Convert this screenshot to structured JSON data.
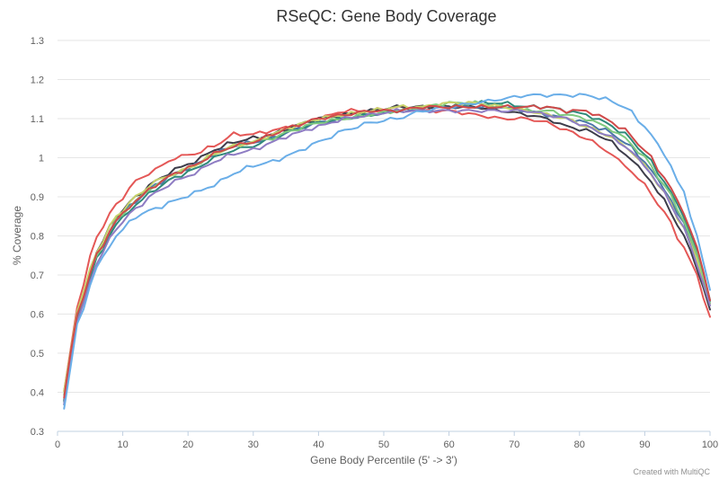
{
  "chart_data": {
    "type": "line",
    "title": "RSeQC: Gene Body Coverage",
    "xlabel": "Gene Body Percentile (5' -> 3')",
    "ylabel": "% Coverage",
    "credit": "Created with MultiQC",
    "xlim": [
      0,
      100
    ],
    "ylim": [
      0.3,
      1.3
    ],
    "xticks": [
      0,
      10,
      20,
      30,
      40,
      50,
      60,
      70,
      80,
      90,
      100
    ],
    "yticks": [
      0.3,
      0.4,
      0.5,
      0.6,
      0.7,
      0.8,
      0.9,
      1,
      1.1,
      1.2,
      1.3
    ],
    "grid": true,
    "series": [
      {
        "color": "#e45756",
        "anchors": [
          [
            1,
            0.4
          ],
          [
            3,
            0.62
          ],
          [
            6,
            0.8
          ],
          [
            9,
            0.88
          ],
          [
            12,
            0.94
          ],
          [
            15,
            0.97
          ],
          [
            18,
            1.0
          ],
          [
            21,
            1.01
          ],
          [
            24,
            1.03
          ],
          [
            27,
            1.06
          ],
          [
            30,
            1.06
          ],
          [
            33,
            1.07
          ],
          [
            36,
            1.08
          ],
          [
            40,
            1.1
          ],
          [
            44,
            1.12
          ],
          [
            48,
            1.12
          ],
          [
            52,
            1.13
          ],
          [
            56,
            1.12
          ],
          [
            60,
            1.12
          ],
          [
            64,
            1.11
          ],
          [
            68,
            1.1
          ],
          [
            72,
            1.1
          ],
          [
            75,
            1.09
          ],
          [
            78,
            1.07
          ],
          [
            81,
            1.05
          ],
          [
            84,
            1.02
          ],
          [
            87,
            0.98
          ],
          [
            90,
            0.93
          ],
          [
            93,
            0.86
          ],
          [
            96,
            0.77
          ],
          [
            98,
            0.7
          ],
          [
            100,
            0.59
          ]
        ]
      },
      {
        "color": "#3d3d4a",
        "anchors": [
          [
            1,
            0.38
          ],
          [
            3,
            0.6
          ],
          [
            6,
            0.76
          ],
          [
            9,
            0.85
          ],
          [
            12,
            0.9
          ],
          [
            15,
            0.94
          ],
          [
            18,
            0.97
          ],
          [
            21,
            0.99
          ],
          [
            24,
            1.02
          ],
          [
            27,
            1.04
          ],
          [
            30,
            1.05
          ],
          [
            33,
            1.06
          ],
          [
            36,
            1.08
          ],
          [
            40,
            1.1
          ],
          [
            44,
            1.11
          ],
          [
            48,
            1.12
          ],
          [
            52,
            1.13
          ],
          [
            56,
            1.13
          ],
          [
            60,
            1.13
          ],
          [
            64,
            1.13
          ],
          [
            68,
            1.12
          ],
          [
            72,
            1.11
          ],
          [
            75,
            1.1
          ],
          [
            78,
            1.08
          ],
          [
            81,
            1.07
          ],
          [
            84,
            1.05
          ],
          [
            87,
            1.01
          ],
          [
            90,
            0.96
          ],
          [
            93,
            0.89
          ],
          [
            96,
            0.8
          ],
          [
            98,
            0.72
          ],
          [
            100,
            0.61
          ]
        ]
      },
      {
        "color": "#4c78a8",
        "anchors": [
          [
            1,
            0.37
          ],
          [
            3,
            0.59
          ],
          [
            6,
            0.75
          ],
          [
            9,
            0.84
          ],
          [
            12,
            0.89
          ],
          [
            15,
            0.93
          ],
          [
            18,
            0.96
          ],
          [
            21,
            0.98
          ],
          [
            24,
            1.01
          ],
          [
            27,
            1.03
          ],
          [
            30,
            1.04
          ],
          [
            33,
            1.05
          ],
          [
            36,
            1.07
          ],
          [
            40,
            1.09
          ],
          [
            44,
            1.1
          ],
          [
            48,
            1.11
          ],
          [
            52,
            1.12
          ],
          [
            56,
            1.12
          ],
          [
            60,
            1.13
          ],
          [
            64,
            1.13
          ],
          [
            68,
            1.13
          ],
          [
            72,
            1.12
          ],
          [
            75,
            1.11
          ],
          [
            78,
            1.1
          ],
          [
            81,
            1.09
          ],
          [
            84,
            1.07
          ],
          [
            87,
            1.04
          ],
          [
            90,
            0.99
          ],
          [
            93,
            0.92
          ],
          [
            96,
            0.83
          ],
          [
            98,
            0.75
          ],
          [
            100,
            0.63
          ]
        ]
      },
      {
        "color": "#2f8a7a",
        "anchors": [
          [
            1,
            0.38
          ],
          [
            3,
            0.59
          ],
          [
            6,
            0.74
          ],
          [
            9,
            0.83
          ],
          [
            12,
            0.88
          ],
          [
            15,
            0.92
          ],
          [
            18,
            0.95
          ],
          [
            21,
            0.97
          ],
          [
            24,
            1.0
          ],
          [
            27,
            1.02
          ],
          [
            30,
            1.03
          ],
          [
            33,
            1.05
          ],
          [
            36,
            1.07
          ],
          [
            40,
            1.09
          ],
          [
            44,
            1.1
          ],
          [
            48,
            1.11
          ],
          [
            52,
            1.12
          ],
          [
            56,
            1.13
          ],
          [
            60,
            1.13
          ],
          [
            64,
            1.14
          ],
          [
            68,
            1.14
          ],
          [
            72,
            1.13
          ],
          [
            75,
            1.13
          ],
          [
            78,
            1.12
          ],
          [
            81,
            1.11
          ],
          [
            84,
            1.09
          ],
          [
            87,
            1.06
          ],
          [
            90,
            1.01
          ],
          [
            93,
            0.94
          ],
          [
            96,
            0.85
          ],
          [
            98,
            0.76
          ],
          [
            100,
            0.64
          ]
        ]
      },
      {
        "color": "#7fc97f",
        "anchors": [
          [
            1,
            0.39
          ],
          [
            3,
            0.6
          ],
          [
            6,
            0.75
          ],
          [
            9,
            0.84
          ],
          [
            12,
            0.89
          ],
          [
            15,
            0.93
          ],
          [
            18,
            0.96
          ],
          [
            21,
            0.98
          ],
          [
            24,
            1.01
          ],
          [
            27,
            1.03
          ],
          [
            30,
            1.04
          ],
          [
            33,
            1.05
          ],
          [
            36,
            1.07
          ],
          [
            40,
            1.09
          ],
          [
            44,
            1.1
          ],
          [
            48,
            1.11
          ],
          [
            52,
            1.12
          ],
          [
            56,
            1.13
          ],
          [
            60,
            1.14
          ],
          [
            64,
            1.14
          ],
          [
            68,
            1.13
          ],
          [
            72,
            1.12
          ],
          [
            75,
            1.12
          ],
          [
            78,
            1.11
          ],
          [
            81,
            1.1
          ],
          [
            84,
            1.08
          ],
          [
            87,
            1.05
          ],
          [
            90,
            1.0
          ],
          [
            93,
            0.93
          ],
          [
            96,
            0.84
          ],
          [
            98,
            0.75
          ],
          [
            100,
            0.63
          ]
        ]
      },
      {
        "color": "#c7d36b",
        "anchors": [
          [
            1,
            0.4
          ],
          [
            3,
            0.61
          ],
          [
            6,
            0.76
          ],
          [
            9,
            0.85
          ],
          [
            12,
            0.9
          ],
          [
            15,
            0.94
          ],
          [
            18,
            0.96
          ],
          [
            21,
            0.98
          ],
          [
            24,
            1.01
          ],
          [
            27,
            1.03
          ],
          [
            30,
            1.04
          ],
          [
            33,
            1.06
          ],
          [
            36,
            1.08
          ],
          [
            40,
            1.1
          ],
          [
            44,
            1.11
          ],
          [
            48,
            1.12
          ],
          [
            52,
            1.13
          ],
          [
            56,
            1.13
          ],
          [
            60,
            1.14
          ],
          [
            64,
            1.14
          ],
          [
            68,
            1.13
          ],
          [
            72,
            1.12
          ],
          [
            75,
            1.11
          ],
          [
            78,
            1.1
          ],
          [
            81,
            1.08
          ],
          [
            84,
            1.06
          ],
          [
            87,
            1.03
          ],
          [
            90,
            0.98
          ],
          [
            93,
            0.91
          ],
          [
            96,
            0.82
          ],
          [
            98,
            0.74
          ],
          [
            100,
            0.62
          ]
        ]
      },
      {
        "color": "#8e7cc3",
        "anchors": [
          [
            1,
            0.37
          ],
          [
            3,
            0.58
          ],
          [
            6,
            0.73
          ],
          [
            9,
            0.82
          ],
          [
            12,
            0.87
          ],
          [
            15,
            0.91
          ],
          [
            18,
            0.94
          ],
          [
            21,
            0.96
          ],
          [
            24,
            0.99
          ],
          [
            27,
            1.01
          ],
          [
            30,
            1.02
          ],
          [
            33,
            1.04
          ],
          [
            36,
            1.06
          ],
          [
            40,
            1.08
          ],
          [
            44,
            1.1
          ],
          [
            48,
            1.11
          ],
          [
            52,
            1.12
          ],
          [
            56,
            1.12
          ],
          [
            60,
            1.12
          ],
          [
            64,
            1.12
          ],
          [
            68,
            1.12
          ],
          [
            72,
            1.12
          ],
          [
            75,
            1.11
          ],
          [
            78,
            1.1
          ],
          [
            81,
            1.08
          ],
          [
            84,
            1.06
          ],
          [
            87,
            1.03
          ],
          [
            90,
            0.98
          ],
          [
            93,
            0.91
          ],
          [
            96,
            0.82
          ],
          [
            98,
            0.73
          ],
          [
            100,
            0.62
          ]
        ]
      },
      {
        "color": "#6aaee8",
        "anchors": [
          [
            1,
            0.36
          ],
          [
            3,
            0.57
          ],
          [
            6,
            0.72
          ],
          [
            9,
            0.8
          ],
          [
            12,
            0.85
          ],
          [
            15,
            0.87
          ],
          [
            18,
            0.89
          ],
          [
            21,
            0.91
          ],
          [
            24,
            0.93
          ],
          [
            27,
            0.96
          ],
          [
            30,
            0.98
          ],
          [
            33,
            0.99
          ],
          [
            36,
            1.01
          ],
          [
            40,
            1.04
          ],
          [
            44,
            1.07
          ],
          [
            48,
            1.09
          ],
          [
            52,
            1.1
          ],
          [
            56,
            1.12
          ],
          [
            60,
            1.13
          ],
          [
            64,
            1.14
          ],
          [
            68,
            1.15
          ],
          [
            72,
            1.16
          ],
          [
            75,
            1.16
          ],
          [
            78,
            1.16
          ],
          [
            81,
            1.16
          ],
          [
            84,
            1.15
          ],
          [
            87,
            1.13
          ],
          [
            90,
            1.08
          ],
          [
            93,
            1.01
          ],
          [
            96,
            0.91
          ],
          [
            98,
            0.8
          ],
          [
            100,
            0.66
          ]
        ]
      },
      {
        "color": "#d04a4a",
        "anchors": [
          [
            1,
            0.39
          ],
          [
            3,
            0.6
          ],
          [
            6,
            0.75
          ],
          [
            9,
            0.84
          ],
          [
            12,
            0.89
          ],
          [
            15,
            0.93
          ],
          [
            18,
            0.96
          ],
          [
            21,
            0.98
          ],
          [
            24,
            1.01
          ],
          [
            27,
            1.03
          ],
          [
            30,
            1.04
          ],
          [
            33,
            1.06
          ],
          [
            36,
            1.08
          ],
          [
            40,
            1.1
          ],
          [
            44,
            1.11
          ],
          [
            48,
            1.12
          ],
          [
            52,
            1.12
          ],
          [
            56,
            1.13
          ],
          [
            60,
            1.13
          ],
          [
            64,
            1.13
          ],
          [
            68,
            1.13
          ],
          [
            72,
            1.13
          ],
          [
            75,
            1.13
          ],
          [
            78,
            1.12
          ],
          [
            81,
            1.12
          ],
          [
            84,
            1.1
          ],
          [
            87,
            1.07
          ],
          [
            90,
            1.02
          ],
          [
            93,
            0.95
          ],
          [
            96,
            0.86
          ],
          [
            98,
            0.77
          ],
          [
            100,
            0.64
          ]
        ]
      }
    ]
  }
}
